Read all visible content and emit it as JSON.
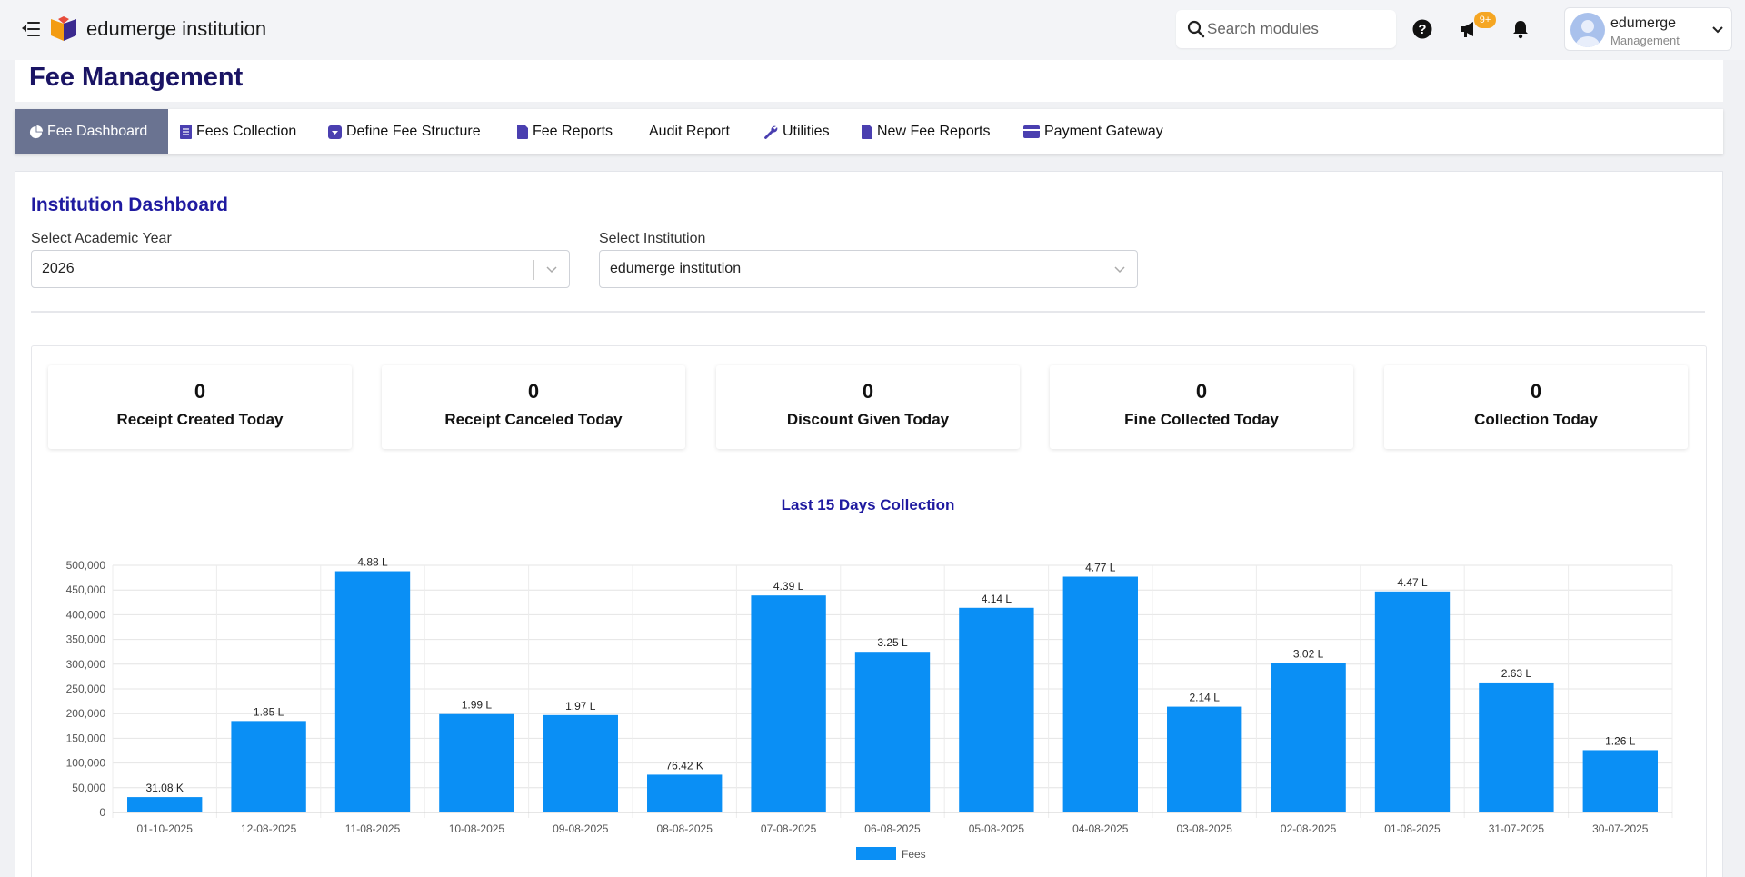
{
  "header": {
    "brand": "edumerge institution",
    "search_placeholder": "Search modules",
    "notification_badge": "9+",
    "user_name": "edumerge",
    "user_role": "Management"
  },
  "page_title": "Fee Management",
  "tabs": [
    {
      "label": "Fee Dashboard",
      "icon": "pie-chart-icon",
      "active": true
    },
    {
      "label": "Fees Collection",
      "icon": "document-icon",
      "active": false
    },
    {
      "label": "Define Fee Structure",
      "icon": "dropdown-box-icon",
      "active": false
    },
    {
      "label": "Fee Reports",
      "icon": "file-icon",
      "active": false
    },
    {
      "label": "Audit Report",
      "icon": "",
      "active": false
    },
    {
      "label": "Utilities",
      "icon": "wrench-icon",
      "active": false
    },
    {
      "label": "New Fee Reports",
      "icon": "file-icon",
      "active": false
    },
    {
      "label": "Payment Gateway",
      "icon": "credit-card-icon",
      "active": false
    }
  ],
  "dashboard": {
    "title": "Institution Dashboard",
    "year_label": "Select Academic Year",
    "year_value": "2026",
    "institution_label": "Select Institution",
    "institution_value": "edumerge institution"
  },
  "stats": [
    {
      "value": "0",
      "label": "Receipt Created Today"
    },
    {
      "value": "0",
      "label": "Receipt Canceled Today"
    },
    {
      "value": "0",
      "label": "Discount Given Today"
    },
    {
      "value": "0",
      "label": "Fine Collected Today"
    },
    {
      "value": "0",
      "label": "Collection Today"
    }
  ],
  "colors": {
    "accent": "#1f1aa0",
    "bar": "#0a8ff5",
    "active_tab": "#6a7391"
  },
  "chart_data": {
    "type": "bar",
    "title": "Last 15 Days Collection",
    "categories": [
      "01-10-2025",
      "12-08-2025",
      "11-08-2025",
      "10-08-2025",
      "09-08-2025",
      "08-08-2025",
      "07-08-2025",
      "06-08-2025",
      "05-08-2025",
      "04-08-2025",
      "03-08-2025",
      "02-08-2025",
      "01-08-2025",
      "31-07-2025",
      "30-07-2025"
    ],
    "series": [
      {
        "name": "Fees",
        "values": [
          31080,
          185000,
          488000,
          199000,
          197000,
          76420,
          439000,
          325000,
          414000,
          477000,
          214000,
          302000,
          447000,
          263000,
          126000
        ],
        "labels": [
          "31.08 K",
          "1.85 L",
          "4.88 L",
          "1.99 L",
          "1.97 L",
          "76.42 K",
          "4.39 L",
          "3.25 L",
          "4.14 L",
          "4.77 L",
          "2.14 L",
          "3.02 L",
          "4.47 L",
          "2.63 L",
          "1.26 L"
        ]
      }
    ],
    "y_ticks": [
      "0",
      "50,000",
      "100,000",
      "150,000",
      "200,000",
      "250,000",
      "300,000",
      "350,000",
      "400,000",
      "450,000",
      "500,000"
    ],
    "ylim": [
      0,
      500000
    ],
    "grid": true,
    "legend": "bottom-center"
  }
}
